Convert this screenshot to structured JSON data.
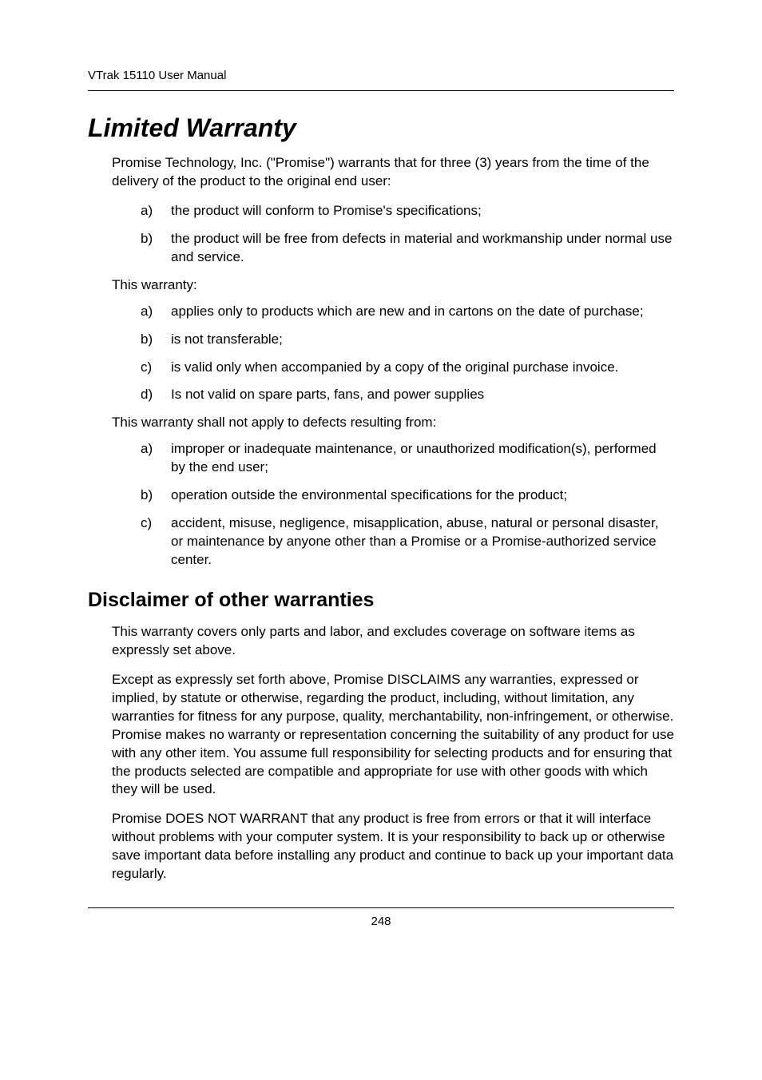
{
  "header": {
    "running_head": "VTrak 15110 User Manual"
  },
  "title": "Limited Warranty",
  "intro_paragraph": "Promise Technology, Inc. (\"Promise\") warrants that for three (3) years from the time of the delivery of the product to the original end user:",
  "intro_list": [
    {
      "letter": "a)",
      "text": "the product will conform to Promise's specifications;"
    },
    {
      "letter": "b)",
      "text": "the product will be free from defects in material and workmanship under normal use and service."
    }
  ],
  "warranty_label": "This warranty:",
  "warranty_list": [
    {
      "letter": "a)",
      "text": "applies only to products which are new and in cartons on the date of purchase;"
    },
    {
      "letter": "b)",
      "text": "is not transferable;"
    },
    {
      "letter": "c)",
      "text": "is valid only when accompanied by a copy of the original purchase invoice."
    },
    {
      "letter": "d)",
      "text": "Is not valid on spare parts, fans, and power supplies"
    }
  ],
  "exclusion_label": "This warranty shall not apply to defects resulting from:",
  "exclusion_list": [
    {
      "letter": "a)",
      "text": "improper or inadequate maintenance, or unauthorized modification(s), performed by the end user;"
    },
    {
      "letter": "b)",
      "text": "operation outside the environmental specifications for the product;"
    },
    {
      "letter": "c)",
      "text": "accident, misuse, negligence, misapplication, abuse, natural or personal disaster, or maintenance by anyone other than a Promise or a Promise-authorized service center."
    }
  ],
  "disclaimer": {
    "heading": "Disclaimer of other warranties",
    "p1": "This warranty covers only parts and labor, and excludes coverage on software items as expressly set above.",
    "p2": "Except as expressly set forth above, Promise DISCLAIMS any warranties, expressed or implied, by statute or otherwise, regarding the product, including, without limitation, any warranties for fitness for any purpose, quality, merchantability, non-infringement, or otherwise. Promise makes no warranty or representation concerning the suitability of any product for use with any other item. You assume full responsibility for selecting products and for ensuring that the products selected are compatible and appropriate for use with other goods with which they will be used.",
    "p3": "Promise DOES NOT WARRANT that any product is free from errors or that it will interface without problems with your computer system. It is your responsibility to back up or otherwise save important data before installing any product and continue to back up your important data regularly."
  },
  "footer": {
    "page_number": "248"
  }
}
